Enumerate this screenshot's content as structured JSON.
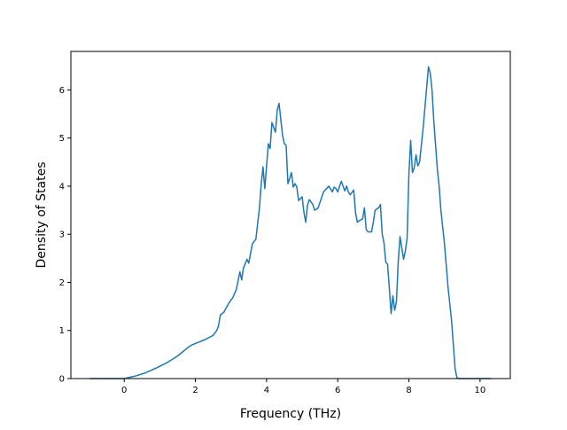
{
  "chart_data": {
    "type": "line",
    "title": "",
    "xlabel": "Frequency (THz)",
    "ylabel": "Density of States",
    "xlim": [
      -1.5,
      10.85
    ],
    "ylim": [
      0,
      6.8
    ],
    "xticks": [
      0,
      2,
      4,
      6,
      8,
      10
    ],
    "yticks": [
      0,
      1,
      2,
      3,
      4,
      5,
      6
    ],
    "grid": false,
    "legend": "none",
    "series": [
      {
        "color": "#1f77b4",
        "x": [
          -0.95,
          0.0,
          0.3,
          0.6,
          0.9,
          1.2,
          1.5,
          1.8,
          1.9,
          2.1,
          2.3,
          2.5,
          2.6,
          2.65,
          2.7,
          2.8,
          2.85,
          2.95,
          3.05,
          3.15,
          3.25,
          3.3,
          3.35,
          3.45,
          3.5,
          3.6,
          3.7,
          3.8,
          3.85,
          3.9,
          3.95,
          4.05,
          4.1,
          4.15,
          4.25,
          4.3,
          4.35,
          4.45,
          4.5,
          4.55,
          4.6,
          4.7,
          4.75,
          4.8,
          4.85,
          4.9,
          5.0,
          5.05,
          5.1,
          5.15,
          5.2,
          5.3,
          5.35,
          5.4,
          5.45,
          5.6,
          5.75,
          5.85,
          5.9,
          5.95,
          6.0,
          6.1,
          6.2,
          6.25,
          6.3,
          6.35,
          6.45,
          6.5,
          6.55,
          6.6,
          6.7,
          6.75,
          6.8,
          6.85,
          6.95,
          7.0,
          7.05,
          7.15,
          7.2,
          7.25,
          7.3,
          7.35,
          7.4,
          7.45,
          7.5,
          7.55,
          7.6,
          7.65,
          7.7,
          7.75,
          7.85,
          7.9,
          7.95,
          8.0,
          8.05,
          8.1,
          8.15,
          8.2,
          8.25,
          8.3,
          8.35,
          8.4,
          8.5,
          8.55,
          8.6,
          8.65,
          8.7,
          8.75,
          8.8,
          8.85,
          8.9,
          9.0,
          9.1,
          9.2,
          9.3,
          9.35,
          9.4,
          9.5,
          10.3
        ],
        "y": [
          0.0,
          0.0,
          0.05,
          0.12,
          0.22,
          0.33,
          0.47,
          0.65,
          0.7,
          0.76,
          0.82,
          0.9,
          1.0,
          1.1,
          1.32,
          1.38,
          1.45,
          1.58,
          1.68,
          1.85,
          2.22,
          2.05,
          2.3,
          2.48,
          2.4,
          2.8,
          2.9,
          3.55,
          4.05,
          4.4,
          3.95,
          4.88,
          4.78,
          5.32,
          5.12,
          5.58,
          5.72,
          5.05,
          4.88,
          4.85,
          4.05,
          4.28,
          3.98,
          4.05,
          3.98,
          3.7,
          3.78,
          3.45,
          3.25,
          3.6,
          3.72,
          3.62,
          3.5,
          3.52,
          3.55,
          3.88,
          4.0,
          3.88,
          3.98,
          3.95,
          3.88,
          4.1,
          3.9,
          4.0,
          3.88,
          3.82,
          3.92,
          3.45,
          3.25,
          3.28,
          3.32,
          3.55,
          3.1,
          3.05,
          3.05,
          3.25,
          3.5,
          3.55,
          3.62,
          3.0,
          2.82,
          2.42,
          2.38,
          1.88,
          1.35,
          1.72,
          1.42,
          1.6,
          2.42,
          2.95,
          2.48,
          2.65,
          2.92,
          4.25,
          4.95,
          4.28,
          4.38,
          4.65,
          4.42,
          4.5,
          4.85,
          5.2,
          6.05,
          6.48,
          6.35,
          6.0,
          5.35,
          4.85,
          4.35,
          4.0,
          3.5,
          2.8,
          1.9,
          1.2,
          0.2,
          0.02,
          0.0,
          0.0,
          0.0
        ]
      }
    ]
  }
}
